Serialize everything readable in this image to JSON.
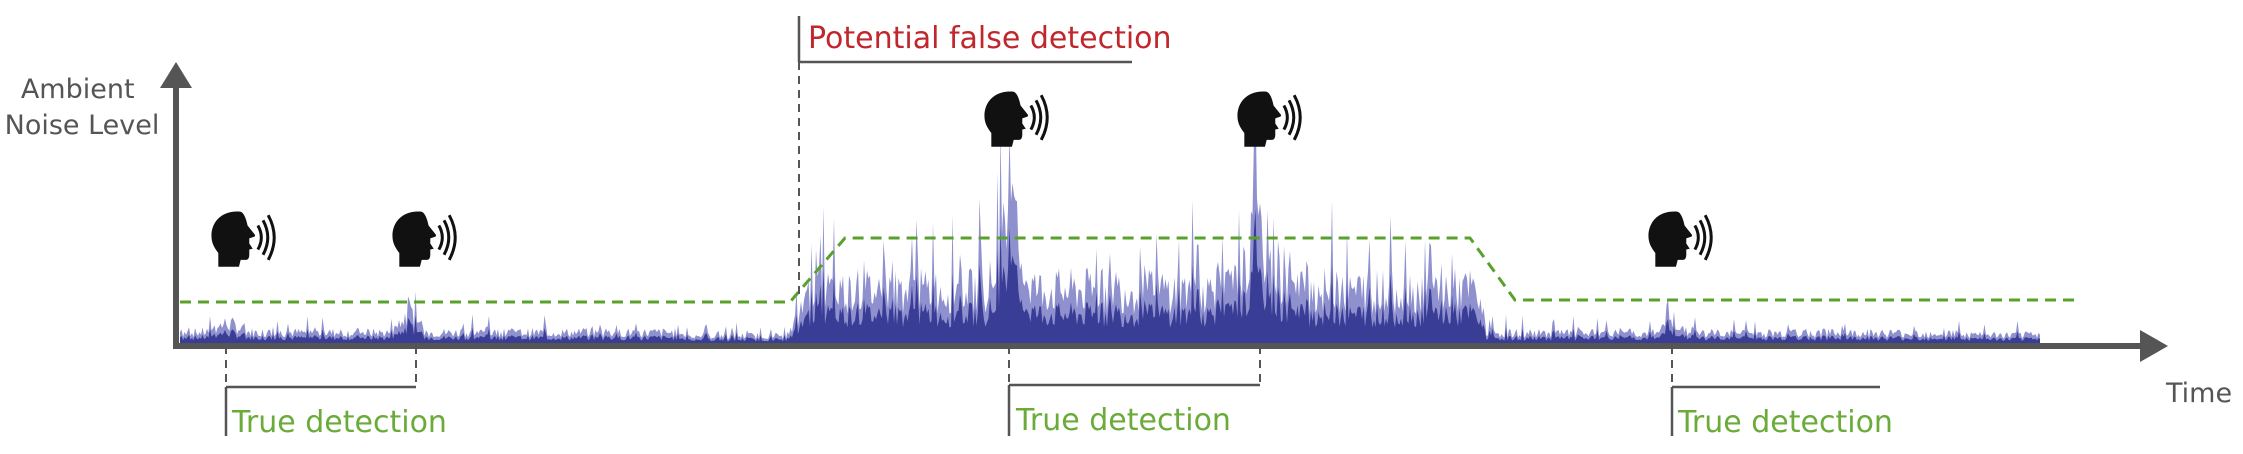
{
  "axes": {
    "y_label_line1": "Ambient",
    "y_label_line2": "Noise Level",
    "x_label": "Time"
  },
  "annotations": {
    "false_detection": "Potential false detection",
    "true_detection": "True detection"
  },
  "icons": {
    "speaker": "speaking-head-icon"
  },
  "colors": {
    "waveform": "#3a3d96",
    "threshold": "#5aa02c",
    "false_label": "#c0272d",
    "true_label": "#6aab3a",
    "axis": "#555555"
  }
}
